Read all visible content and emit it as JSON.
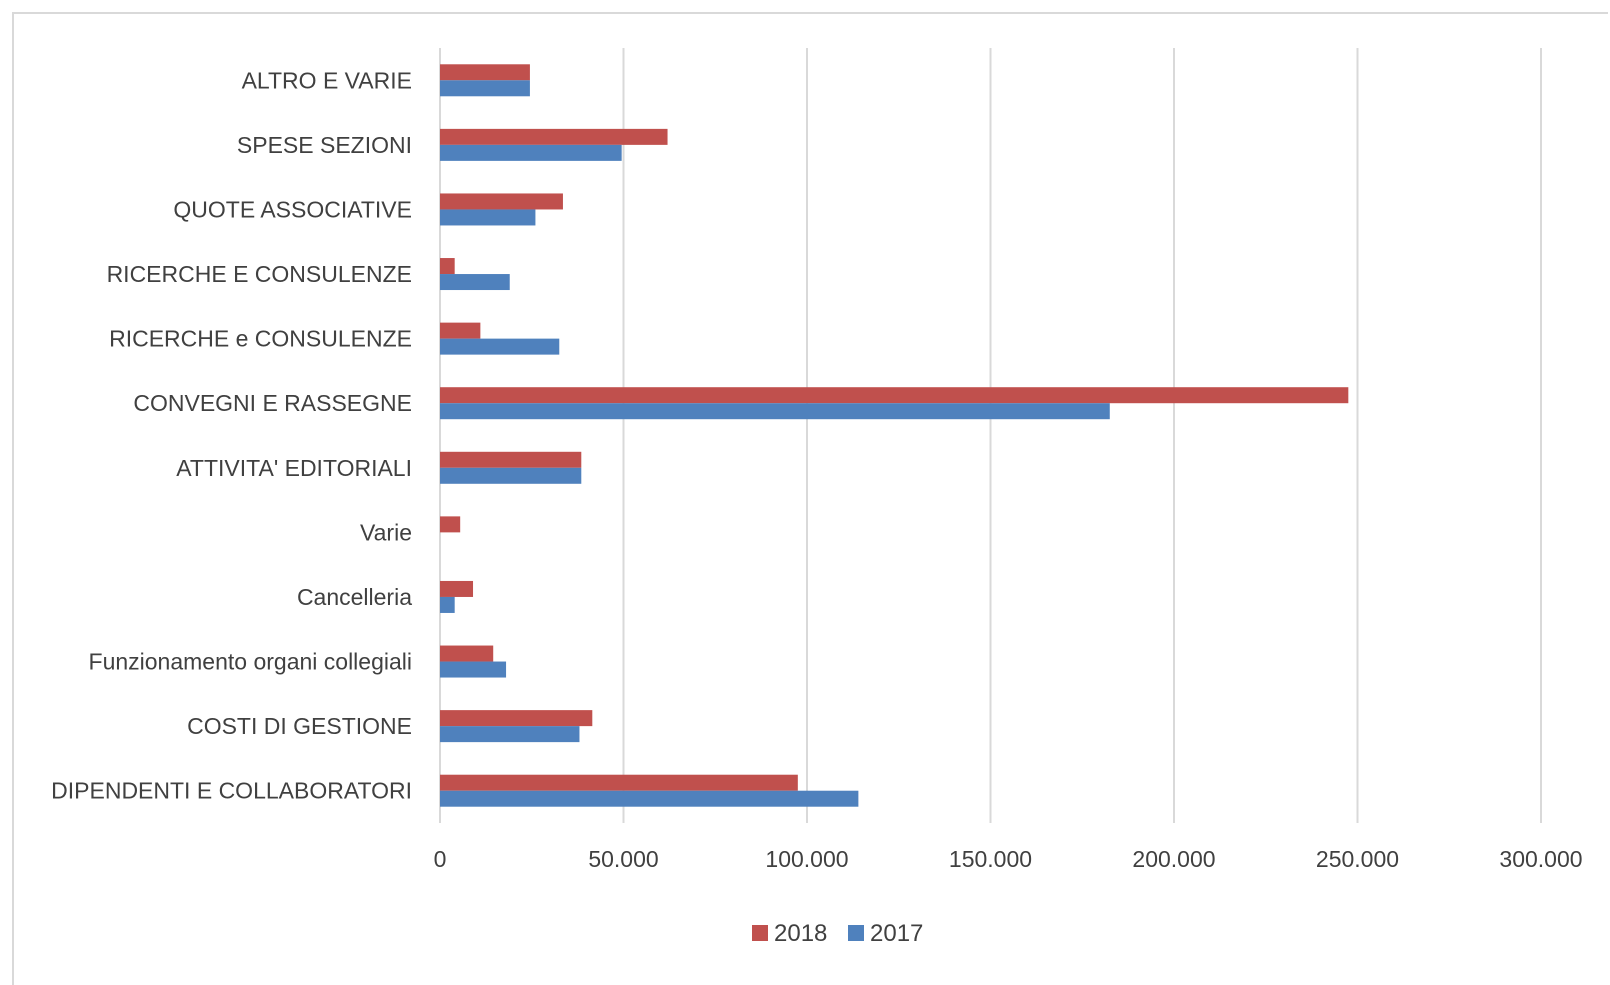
{
  "chart_data": {
    "type": "bar",
    "orientation": "horizontal",
    "categories": [
      "ALTRO E VARIE",
      "SPESE SEZIONI",
      "QUOTE ASSOCIATIVE",
      "RICERCHE E CONSULENZE",
      "RICERCHE e CONSULENZE",
      "CONVEGNI E RASSEGNE",
      "ATTIVITA' EDITORIALI",
      "Varie",
      "Cancelleria",
      "Funzionamento organi collegiali",
      "COSTI DI GESTIONE",
      "DIPENDENTI E COLLABORATORI"
    ],
    "series": [
      {
        "name": "2018",
        "color": "#c0504d",
        "values": [
          24500,
          62000,
          33500,
          4000,
          11000,
          247500,
          38500,
          5500,
          9000,
          14500,
          41500,
          97500
        ]
      },
      {
        "name": "2017",
        "color": "#4f81bd",
        "values": [
          24500,
          49500,
          26000,
          19000,
          32500,
          182500,
          38500,
          0,
          4000,
          18000,
          38000,
          114000
        ]
      }
    ],
    "xlim": [
      0,
      300000
    ],
    "xticks": [
      0,
      50000,
      100000,
      150000,
      200000,
      250000,
      300000
    ],
    "xtick_labels": [
      "0",
      "50.000",
      "100.000",
      "150.000",
      "200.000",
      "250.000",
      "300.000"
    ],
    "grid": true,
    "gridline_color": "#d9d9d9",
    "legend_position": "bottom",
    "legend": [
      "2018",
      "2017"
    ],
    "title": "",
    "xlabel": "",
    "ylabel": ""
  }
}
